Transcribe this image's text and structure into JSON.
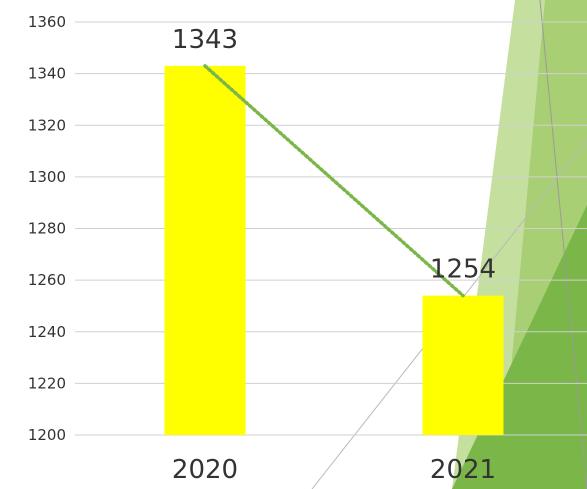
{
  "chart_data": {
    "type": "bar",
    "categories": [
      "2020",
      "2021"
    ],
    "values": [
      1343,
      1254
    ],
    "data_labels": [
      "1343",
      "1254"
    ],
    "ylim": [
      1200,
      1360
    ],
    "yticks": [
      1200,
      1220,
      1240,
      1260,
      1280,
      1300,
      1320,
      1340,
      1360
    ],
    "ytick_labels": [
      "1200",
      "1220",
      "1240",
      "1260",
      "1280",
      "1300",
      "1320",
      "1340",
      "1360"
    ],
    "grid": true,
    "trendline": "dotted",
    "title": "",
    "xlabel": "",
    "ylabel": ""
  },
  "colors": {
    "bar": "#ffff00",
    "trendline": "#7ab648",
    "grid": "#d0d0d0",
    "decor_light": "#c5df9f",
    "decor_mid": "#a8cf74",
    "decor_dark": "#7ab648",
    "decor_line": "#b9b9b9"
  }
}
